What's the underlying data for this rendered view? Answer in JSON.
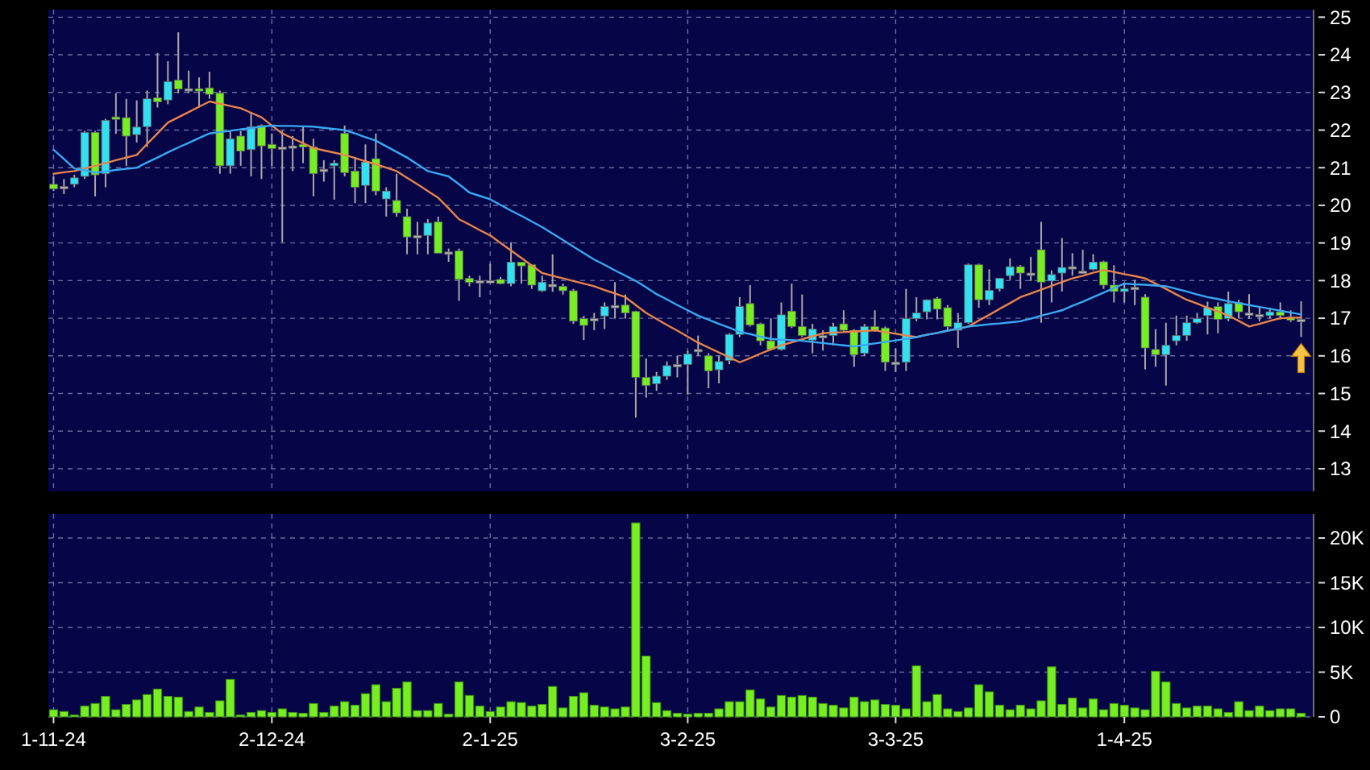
{
  "chart_data": [
    {
      "type": "candlestick",
      "categories": [
        null,
        null,
        null,
        null,
        null,
        null,
        null,
        null,
        null,
        null,
        null,
        null,
        null,
        null,
        null,
        null,
        null,
        null,
        null,
        null,
        null,
        null,
        null,
        null,
        null,
        null,
        null,
        null,
        null,
        null,
        null,
        null,
        null,
        null,
        null,
        null,
        null,
        null,
        null,
        null,
        null,
        null,
        null,
        null,
        null,
        null,
        null,
        null,
        null,
        null,
        null,
        null,
        null,
        null,
        null,
        null,
        null,
        null,
        null,
        null,
        null,
        null,
        null,
        null,
        null,
        null,
        null,
        null,
        null,
        null,
        null,
        null,
        null,
        null,
        null,
        null,
        null,
        null,
        null,
        null,
        null,
        null,
        null,
        null,
        null,
        null,
        null,
        null,
        null,
        null,
        null,
        null,
        null,
        null,
        null,
        null,
        null,
        null,
        null,
        null,
        null,
        null,
        null,
        null,
        null,
        null,
        null,
        null,
        null,
        null,
        null,
        null,
        null,
        null,
        null,
        null,
        null,
        null,
        null,
        null,
        null
      ],
      "ohlc": [
        [
          20.56,
          20.77,
          20.38,
          20.44
        ],
        [
          20.5,
          20.7,
          20.3,
          20.5
        ],
        [
          20.56,
          20.81,
          20.48,
          20.73
        ],
        [
          20.77,
          21.98,
          20.7,
          21.94
        ],
        [
          21.94,
          21.98,
          20.24,
          20.81
        ],
        [
          20.84,
          22.3,
          20.48,
          22.26
        ],
        [
          22.35,
          22.98,
          21.9,
          22.3
        ],
        [
          22.33,
          22.83,
          21.05,
          21.84
        ],
        [
          21.88,
          22.79,
          21.67,
          22.08
        ],
        [
          22.09,
          23.05,
          21.55,
          22.83
        ],
        [
          22.86,
          24.05,
          22.6,
          22.75
        ],
        [
          22.8,
          23.83,
          22.69,
          23.29
        ],
        [
          23.33,
          24.6,
          22.98,
          23.09
        ],
        [
          23.1,
          23.58,
          22.98,
          23.1
        ],
        [
          23.1,
          23.4,
          22.6,
          23.08
        ],
        [
          23.12,
          23.55,
          22.83,
          22.95
        ],
        [
          22.98,
          23.05,
          20.84,
          21.05
        ],
        [
          21.05,
          21.98,
          20.84,
          21.77
        ],
        [
          21.84,
          21.98,
          21.05,
          21.44
        ],
        [
          21.48,
          22.48,
          20.77,
          22.09
        ],
        [
          22.12,
          22.15,
          20.7,
          21.58
        ],
        [
          21.62,
          21.91,
          21.05,
          21.51
        ],
        [
          21.55,
          21.98,
          19.02,
          21.55
        ],
        [
          21.58,
          21.84,
          20.91,
          21.58
        ],
        [
          21.62,
          22.12,
          21.12,
          21.55
        ],
        [
          21.55,
          21.77,
          20.24,
          20.84
        ],
        [
          20.96,
          21.2,
          20.63,
          20.96
        ],
        [
          21.05,
          21.2,
          20.15,
          21.12
        ],
        [
          21.91,
          22.12,
          20.77,
          20.87
        ],
        [
          20.91,
          21.27,
          20.06,
          20.48
        ],
        [
          20.53,
          21.62,
          20.06,
          21.15
        ],
        [
          21.24,
          21.91,
          20.27,
          20.38
        ],
        [
          20.17,
          20.48,
          19.7,
          20.38
        ],
        [
          20.13,
          20.84,
          19.7,
          19.8
        ],
        [
          19.7,
          19.91,
          18.7,
          19.16
        ],
        [
          19.2,
          19.56,
          18.7,
          19.2
        ],
        [
          19.2,
          19.63,
          18.7,
          19.53
        ],
        [
          19.56,
          19.7,
          18.73,
          18.73
        ],
        [
          18.76,
          18.85,
          18.5,
          18.76
        ],
        [
          18.79,
          18.85,
          17.46,
          18.03
        ],
        [
          18.06,
          18.13,
          17.85,
          17.95
        ],
        [
          18.0,
          18.13,
          17.56,
          18.0
        ],
        [
          18.0,
          18.45,
          17.95,
          18.0
        ],
        [
          18.03,
          18.1,
          17.9,
          17.92
        ],
        [
          17.92,
          19.02,
          17.85,
          18.49
        ],
        [
          18.49,
          18.49,
          17.92,
          18.39
        ],
        [
          18.42,
          18.42,
          17.78,
          17.88
        ],
        [
          17.73,
          18.13,
          17.7,
          17.96
        ],
        [
          17.9,
          18.7,
          17.7,
          17.9
        ],
        [
          17.85,
          17.92,
          17.63,
          17.73
        ],
        [
          17.73,
          17.78,
          16.85,
          16.92
        ],
        [
          16.99,
          17.06,
          16.42,
          16.81
        ],
        [
          16.99,
          17.14,
          16.68,
          16.99
        ],
        [
          17.06,
          17.42,
          16.71,
          17.31
        ],
        [
          17.34,
          17.96,
          16.99,
          17.34
        ],
        [
          17.35,
          17.63,
          16.99,
          17.14
        ],
        [
          17.18,
          17.2,
          14.36,
          15.43
        ],
        [
          15.43,
          15.93,
          14.89,
          15.21
        ],
        [
          15.26,
          15.57,
          15.07,
          15.46
        ],
        [
          15.46,
          15.85,
          15.36,
          15.74
        ],
        [
          15.77,
          16.0,
          15.43,
          15.77
        ],
        [
          15.77,
          16.14,
          14.97,
          16.05
        ],
        [
          16.17,
          16.54,
          16.0,
          16.17
        ],
        [
          16.0,
          16.07,
          15.14,
          15.6
        ],
        [
          15.63,
          16.0,
          15.27,
          15.85
        ],
        [
          15.88,
          16.6,
          15.78,
          16.57
        ],
        [
          16.57,
          17.56,
          16.5,
          17.31
        ],
        [
          17.39,
          17.88,
          16.78,
          16.82
        ],
        [
          16.85,
          16.88,
          16.28,
          16.4
        ],
        [
          16.4,
          17.0,
          16.14,
          16.17
        ],
        [
          16.17,
          17.42,
          16.14,
          17.09
        ],
        [
          17.19,
          17.92,
          16.74,
          16.78
        ],
        [
          16.78,
          17.63,
          16.5,
          16.54
        ],
        [
          16.42,
          16.85,
          16.07,
          16.71
        ],
        [
          16.54,
          16.68,
          16.14,
          16.54
        ],
        [
          16.54,
          16.88,
          16.28,
          16.78
        ],
        [
          16.85,
          17.21,
          16.64,
          16.68
        ],
        [
          16.68,
          16.71,
          15.71,
          16.03
        ],
        [
          16.07,
          16.85,
          16.0,
          16.78
        ],
        [
          16.78,
          17.21,
          16.64,
          16.68
        ],
        [
          16.74,
          16.78,
          15.6,
          15.83
        ],
        [
          15.83,
          16.2,
          15.57,
          15.83
        ],
        [
          15.83,
          17.78,
          15.6,
          16.99
        ],
        [
          16.99,
          17.56,
          16.92,
          17.14
        ],
        [
          17.17,
          17.5,
          16.97,
          17.49
        ],
        [
          17.52,
          17.56,
          16.97,
          17.24
        ],
        [
          17.28,
          17.35,
          16.68,
          16.78
        ],
        [
          16.68,
          17.14,
          16.21,
          16.88
        ],
        [
          16.88,
          18.45,
          16.85,
          18.42
        ],
        [
          18.42,
          18.45,
          17.28,
          17.49
        ],
        [
          17.49,
          18.3,
          17.35,
          17.74
        ],
        [
          17.78,
          18.06,
          17.71,
          18.06
        ],
        [
          18.13,
          18.59,
          18.02,
          18.37
        ],
        [
          18.37,
          18.41,
          17.78,
          18.2
        ],
        [
          18.2,
          18.63,
          17.99,
          18.2
        ],
        [
          18.82,
          19.56,
          16.88,
          17.96
        ],
        [
          17.99,
          18.27,
          17.42,
          18.16
        ],
        [
          18.2,
          19.13,
          17.71,
          18.35
        ],
        [
          18.37,
          18.73,
          18.13,
          18.37
        ],
        [
          18.25,
          18.82,
          18.2,
          18.25
        ],
        [
          18.3,
          18.7,
          18.27,
          18.49
        ],
        [
          18.5,
          18.53,
          17.78,
          17.88
        ],
        [
          17.88,
          18.41,
          17.42,
          17.71
        ],
        [
          17.71,
          17.92,
          17.42,
          17.78
        ],
        [
          17.82,
          18.02,
          17.35,
          17.82
        ],
        [
          17.56,
          17.64,
          15.64,
          16.21
        ],
        [
          16.17,
          16.71,
          15.71,
          16.03
        ],
        [
          16.03,
          16.88,
          15.21,
          16.28
        ],
        [
          16.4,
          17.07,
          16.28,
          16.54
        ],
        [
          16.54,
          17.07,
          16.4,
          16.88
        ],
        [
          16.88,
          17.14,
          16.85,
          16.99
        ],
        [
          17.07,
          17.44,
          16.57,
          17.28
        ],
        [
          17.31,
          17.42,
          16.6,
          16.97
        ],
        [
          16.99,
          17.71,
          16.92,
          17.39
        ],
        [
          17.42,
          17.49,
          17.0,
          17.17
        ],
        [
          17.14,
          17.64,
          16.99,
          17.14
        ],
        [
          17.1,
          17.31,
          16.92,
          17.1
        ],
        [
          17.07,
          17.28,
          16.99,
          17.17
        ],
        [
          17.17,
          17.42,
          16.97,
          17.07
        ],
        [
          17.03,
          17.21,
          16.9,
          16.95
        ],
        [
          16.97,
          17.45,
          16.5,
          16.97
        ]
      ],
      "colors": [
        "#77ee22",
        "#b0b0b0",
        "#33e0f0",
        "#33e0f0",
        "#77ee22",
        "#33e0f0",
        "#77ee22",
        "#77ee22",
        "#33e0f0",
        "#33e0f0",
        "#77ee22",
        "#33e0f0",
        "#77ee22",
        "#b0b0b0",
        "#77ee22",
        "#77ee22",
        "#77ee22",
        "#33e0f0",
        "#77ee22",
        "#33e0f0",
        "#77ee22",
        "#77ee22",
        "#b0b0b0",
        "#b0b0b0",
        "#77ee22",
        "#77ee22",
        "#b0b0b0",
        "#33e0f0",
        "#77ee22",
        "#77ee22",
        "#33e0f0",
        "#77ee22",
        "#33e0f0",
        "#77ee22",
        "#77ee22",
        "#b0b0b0",
        "#33e0f0",
        "#77ee22",
        "#b0b0b0",
        "#77ee22",
        "#77ee22",
        "#b0b0b0",
        "#b0b0b0",
        "#77ee22",
        "#33e0f0",
        "#77ee22",
        "#77ee22",
        "#33e0f0",
        "#b0b0b0",
        "#77ee22",
        "#77ee22",
        "#77ee22",
        "#b0b0b0",
        "#33e0f0",
        "#b0b0b0",
        "#77ee22",
        "#77ee22",
        "#77ee22",
        "#33e0f0",
        "#33e0f0",
        "#b0b0b0",
        "#33e0f0",
        "#b0b0b0",
        "#77ee22",
        "#33e0f0",
        "#33e0f0",
        "#33e0f0",
        "#77ee22",
        "#77ee22",
        "#77ee22",
        "#33e0f0",
        "#77ee22",
        "#77ee22",
        "#33e0f0",
        "#b0b0b0",
        "#33e0f0",
        "#77ee22",
        "#77ee22",
        "#33e0f0",
        "#77ee22",
        "#77ee22",
        "#b0b0b0",
        "#33e0f0",
        "#33e0f0",
        "#33e0f0",
        "#77ee22",
        "#77ee22",
        "#33e0f0",
        "#33e0f0",
        "#77ee22",
        "#33e0f0",
        "#33e0f0",
        "#33e0f0",
        "#77ee22",
        "#b0b0b0",
        "#77ee22",
        "#33e0f0",
        "#33e0f0",
        "#b0b0b0",
        "#b0b0b0",
        "#33e0f0",
        "#77ee22",
        "#77ee22",
        "#33e0f0",
        "#b0b0b0",
        "#77ee22",
        "#77ee22",
        "#33e0f0",
        "#33e0f0",
        "#33e0f0",
        "#33e0f0",
        "#33e0f0",
        "#77ee22",
        "#33e0f0",
        "#77ee22",
        "#b0b0b0",
        "#b0b0b0",
        "#33e0f0",
        "#77ee22",
        "#77ee22",
        "#b0b0b0"
      ],
      "series": [
        {
          "type": "line",
          "color": "#e8844a",
          "values": [
            20.84,
            20.88,
            20.91,
            20.98,
            21.05,
            21.12,
            21.2,
            21.27,
            21.34,
            21.63,
            21.91,
            22.2,
            22.34,
            22.48,
            22.62,
            22.76,
            22.7,
            22.64,
            22.58,
            22.46,
            22.34,
            22.12,
            21.91,
            21.78,
            21.65,
            21.52,
            21.46,
            21.4,
            21.34,
            21.26,
            21.17,
            21.09,
            21.0,
            20.91,
            20.73,
            20.56,
            20.38,
            20.2,
            19.92,
            19.63,
            19.49,
            19.34,
            19.2,
            19.0,
            18.8,
            18.6,
            18.4,
            18.2,
            18.13,
            18.06,
            17.99,
            17.92,
            17.85,
            17.75,
            17.66,
            17.56,
            17.35,
            17.14,
            16.98,
            16.82,
            16.67,
            16.51,
            16.35,
            16.22,
            16.09,
            15.96,
            15.83,
            15.94,
            16.06,
            16.17,
            16.28,
            16.36,
            16.44,
            16.52,
            16.6,
            16.62,
            16.63,
            16.65,
            16.66,
            16.68,
            16.63,
            16.59,
            16.54,
            16.5,
            16.56,
            16.61,
            16.67,
            16.72,
            16.78,
            16.94,
            17.09,
            17.25,
            17.4,
            17.56,
            17.66,
            17.76,
            17.86,
            17.96,
            18.06,
            18.13,
            18.21,
            18.28,
            18.23,
            18.17,
            18.12,
            18.06,
            17.92,
            17.78,
            17.63,
            17.49,
            17.39,
            17.28,
            17.18,
            17.07,
            16.93,
            16.78,
            16.85,
            16.93,
            17.0,
            17.01,
            17.02
          ]
        },
        {
          "type": "line",
          "color": "#3aa8f0",
          "values": [
            21.48,
            21.23,
            20.98,
            20.93,
            20.87,
            20.9,
            20.94,
            20.97,
            21.0,
            21.14,
            21.27,
            21.41,
            21.54,
            21.66,
            21.79,
            21.91,
            21.95,
            21.98,
            22.02,
            22.05,
            22.09,
            22.12,
            22.11,
            22.11,
            22.1,
            22.09,
            22.06,
            22.03,
            22.0,
            21.91,
            21.81,
            21.72,
            21.57,
            21.42,
            21.27,
            21.09,
            20.91,
            20.84,
            20.77,
            20.56,
            20.34,
            20.25,
            20.16,
            20.01,
            19.86,
            19.72,
            19.57,
            19.42,
            19.25,
            19.08,
            18.9,
            18.73,
            18.56,
            18.42,
            18.27,
            18.13,
            17.99,
            17.82,
            17.64,
            17.5,
            17.35,
            17.21,
            17.07,
            16.96,
            16.85,
            16.75,
            16.64,
            16.58,
            16.51,
            16.45,
            16.43,
            16.42,
            16.4,
            16.37,
            16.34,
            16.31,
            16.28,
            16.25,
            16.29,
            16.33,
            16.37,
            16.41,
            16.45,
            16.5,
            16.56,
            16.61,
            16.67,
            16.72,
            16.78,
            16.81,
            16.84,
            16.86,
            16.89,
            16.92,
            16.99,
            17.07,
            17.14,
            17.21,
            17.33,
            17.44,
            17.56,
            17.68,
            17.8,
            17.92,
            17.9,
            17.89,
            17.87,
            17.85,
            17.78,
            17.71,
            17.63,
            17.56,
            17.51,
            17.45,
            17.4,
            17.35,
            17.3,
            17.25,
            17.2,
            17.15,
            17.1
          ]
        }
      ],
      "ylim": [
        12.4,
        25.2
      ],
      "yticks": [
        13,
        14,
        15,
        16,
        17,
        18,
        19,
        20,
        21,
        22,
        23,
        24,
        25
      ],
      "grid": true,
      "tick_labels": "y"
    },
    {
      "type": "bar",
      "categories": [
        "1-11-24",
        null,
        null,
        null,
        null,
        null,
        null,
        null,
        null,
        null,
        null,
        null,
        null,
        null,
        null,
        null,
        null,
        null,
        null,
        null,
        null,
        "2-12-24",
        null,
        null,
        null,
        null,
        null,
        null,
        null,
        null,
        null,
        null,
        null,
        null,
        null,
        null,
        null,
        null,
        null,
        null,
        null,
        null,
        "2-1-25",
        null,
        null,
        null,
        null,
        null,
        null,
        null,
        null,
        null,
        null,
        null,
        null,
        null,
        null,
        null,
        null,
        null,
        null,
        "3-2-25",
        null,
        null,
        null,
        null,
        null,
        null,
        null,
        null,
        null,
        null,
        null,
        null,
        null,
        null,
        null,
        null,
        null,
        null,
        null,
        "3-3-25",
        null,
        null,
        null,
        null,
        null,
        null,
        null,
        null,
        null,
        null,
        null,
        null,
        null,
        null,
        null,
        null,
        null,
        null,
        null,
        null,
        null,
        "1-4-25",
        null,
        null,
        null,
        null,
        null,
        null,
        null,
        null,
        null,
        null,
        null,
        null,
        null,
        null,
        null,
        null,
        null
      ],
      "values": [
        0.8,
        0.6,
        0.2,
        1.2,
        1.5,
        2.3,
        0.8,
        1.4,
        1.9,
        2.5,
        3.1,
        2.3,
        2.2,
        0.6,
        1.1,
        0.5,
        1.8,
        4.2,
        0.2,
        0.5,
        0.7,
        0.5,
        0.9,
        0.5,
        0.4,
        1.5,
        0.5,
        1.2,
        1.7,
        1.3,
        2.6,
        3.6,
        1.7,
        3.2,
        3.9,
        0.7,
        0.7,
        1.5,
        0.3,
        3.9,
        2.4,
        1.2,
        0.6,
        1.1,
        1.7,
        1.6,
        1.2,
        1.4,
        3.4,
        1.0,
        2.3,
        2.7,
        1.3,
        1.1,
        0.9,
        1.1,
        21.7,
        6.8,
        1.6,
        0.7,
        0.4,
        0.3,
        0.4,
        0.4,
        0.9,
        1.7,
        1.7,
        3.0,
        2.0,
        1.1,
        2.4,
        2.2,
        2.4,
        2.2,
        1.5,
        1.3,
        1.0,
        2.2,
        1.7,
        1.9,
        1.4,
        1.3,
        0.9,
        5.7,
        1.7,
        2.5,
        0.9,
        0.6,
        1.0,
        3.6,
        2.8,
        1.3,
        0.8,
        1.3,
        0.9,
        1.8,
        5.6,
        1.4,
        2.1,
        1.0,
        2.0,
        0.8,
        1.5,
        1.3,
        1.0,
        0.8,
        5.1,
        3.9,
        1.5,
        1.0,
        1.2,
        1.2,
        0.9,
        0.5,
        1.7,
        0.7,
        1.2,
        0.7,
        0.9,
        0.9,
        0.4
      ],
      "color": "#77ee22",
      "ylim": [
        0,
        22.7
      ],
      "yticks": [
        0,
        {
          "value": 5,
          "label": "5K"
        },
        {
          "value": 10,
          "label": "10K"
        },
        {
          "value": 15,
          "label": "15K"
        },
        {
          "value": 20,
          "label": "20K"
        }
      ],
      "grid": true
    }
  ]
}
